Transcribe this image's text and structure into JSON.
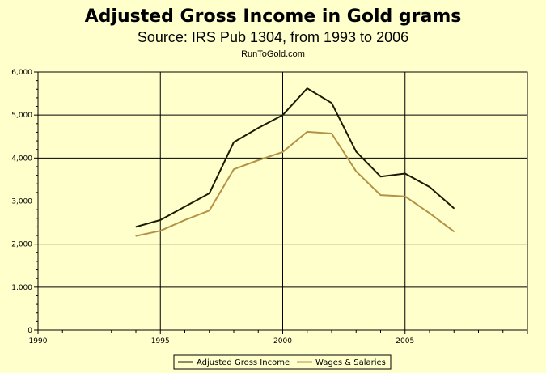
{
  "title": "Adjusted Gross Income in Gold grams",
  "subtitle": "Source: IRS Pub 1304, from 1993 to 2006",
  "credit": "RunToGold.com",
  "colors": {
    "background": "#FFFFCC",
    "grid": "#000000",
    "agi": "#1A1A00",
    "wages": "#B39247"
  },
  "chart_data": {
    "type": "line",
    "title": "Adjusted Gross Income in Gold grams",
    "subtitle": "Source: IRS Pub 1304, from 1993 to 2006",
    "xlim": [
      1990,
      2010
    ],
    "ylim": [
      0,
      6000
    ],
    "x_ticks": [
      1990,
      1995,
      2000,
      2005
    ],
    "y_ticks": [
      0,
      1000,
      2000,
      3000,
      4000,
      5000,
      6000
    ],
    "x_tick_labels": [
      "1990",
      "1995",
      "2000",
      "2005"
    ],
    "y_tick_labels": [
      "0",
      "1,000",
      "2,000",
      "3,000",
      "4,000",
      "5,000",
      "6,000"
    ],
    "grid": true,
    "legend_position": "bottom",
    "series": [
      {
        "name": "Adjusted Gross Income",
        "color": "#1A1A00",
        "x": [
          1994,
          1995,
          1996,
          1997,
          1998,
          1999,
          2000,
          2001,
          2002,
          2003,
          2004,
          2005,
          2006,
          2007
        ],
        "values": [
          2400,
          2560,
          2870,
          3180,
          4370,
          4700,
          5000,
          5620,
          5280,
          4150,
          3570,
          3640,
          3330,
          2830
        ]
      },
      {
        "name": "Wages & Salaries",
        "color": "#B39247",
        "x": [
          1994,
          1995,
          1996,
          1997,
          1998,
          1999,
          2000,
          2001,
          2002,
          2003,
          2004,
          2005,
          2006,
          2007
        ],
        "values": [
          2190,
          2310,
          2560,
          2780,
          3740,
          3950,
          4140,
          4610,
          4570,
          3690,
          3140,
          3110,
          2720,
          2290
        ]
      }
    ]
  }
}
